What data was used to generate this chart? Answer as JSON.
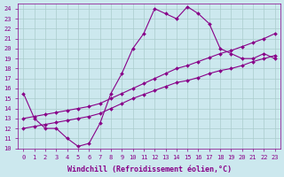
{
  "xlabel": "Windchill (Refroidissement éolien,°C)",
  "bg_color": "#cce8ee",
  "grid_color": "#aacccc",
  "line_color": "#880088",
  "xlim": [
    -0.5,
    23.5
  ],
  "ylim": [
    10,
    24.5
  ],
  "xticks": [
    0,
    1,
    2,
    3,
    4,
    5,
    6,
    7,
    8,
    9,
    10,
    11,
    12,
    13,
    14,
    15,
    16,
    17,
    18,
    19,
    20,
    21,
    22,
    23
  ],
  "yticks": [
    10,
    11,
    12,
    13,
    14,
    15,
    16,
    17,
    18,
    19,
    20,
    21,
    22,
    23,
    24
  ],
  "curve1_x": [
    0,
    1,
    2,
    3,
    4,
    5,
    6,
    7,
    8,
    9,
    10,
    11,
    12,
    13,
    14,
    15,
    16,
    17,
    18,
    19,
    20,
    21,
    22,
    23
  ],
  "curve1_y": [
    15.5,
    13.0,
    12.0,
    12.0,
    11.0,
    10.2,
    10.5,
    12.5,
    15.5,
    17.5,
    20.0,
    21.5,
    24.0,
    23.5,
    23.0,
    24.2,
    23.5,
    22.5,
    20.0,
    19.5,
    19.0,
    19.0,
    19.5,
    19.0
  ],
  "curve2_x": [
    0,
    1,
    2,
    3,
    4,
    5,
    6,
    7,
    8,
    9,
    10,
    11,
    12,
    13,
    14,
    15,
    16,
    17,
    18,
    19,
    20,
    21,
    22,
    23
  ],
  "curve2_y": [
    13.0,
    13.2,
    13.4,
    13.6,
    13.8,
    14.0,
    14.2,
    14.5,
    15.0,
    15.5,
    16.0,
    16.5,
    17.0,
    17.5,
    18.0,
    18.3,
    18.7,
    19.1,
    19.5,
    19.8,
    20.2,
    20.6,
    21.0,
    21.5
  ],
  "curve3_x": [
    0,
    1,
    2,
    3,
    4,
    5,
    6,
    7,
    8,
    9,
    10,
    11,
    12,
    13,
    14,
    15,
    16,
    17,
    18,
    19,
    20,
    21,
    22,
    23
  ],
  "curve3_y": [
    12.0,
    12.2,
    12.4,
    12.6,
    12.8,
    13.0,
    13.2,
    13.5,
    14.0,
    14.5,
    15.0,
    15.4,
    15.8,
    16.2,
    16.6,
    16.8,
    17.1,
    17.5,
    17.8,
    18.0,
    18.3,
    18.7,
    19.0,
    19.3
  ],
  "marker": "D",
  "markersize": 2.0,
  "linewidth": 0.8,
  "tick_fontsize": 5,
  "xlabel_fontsize": 6
}
